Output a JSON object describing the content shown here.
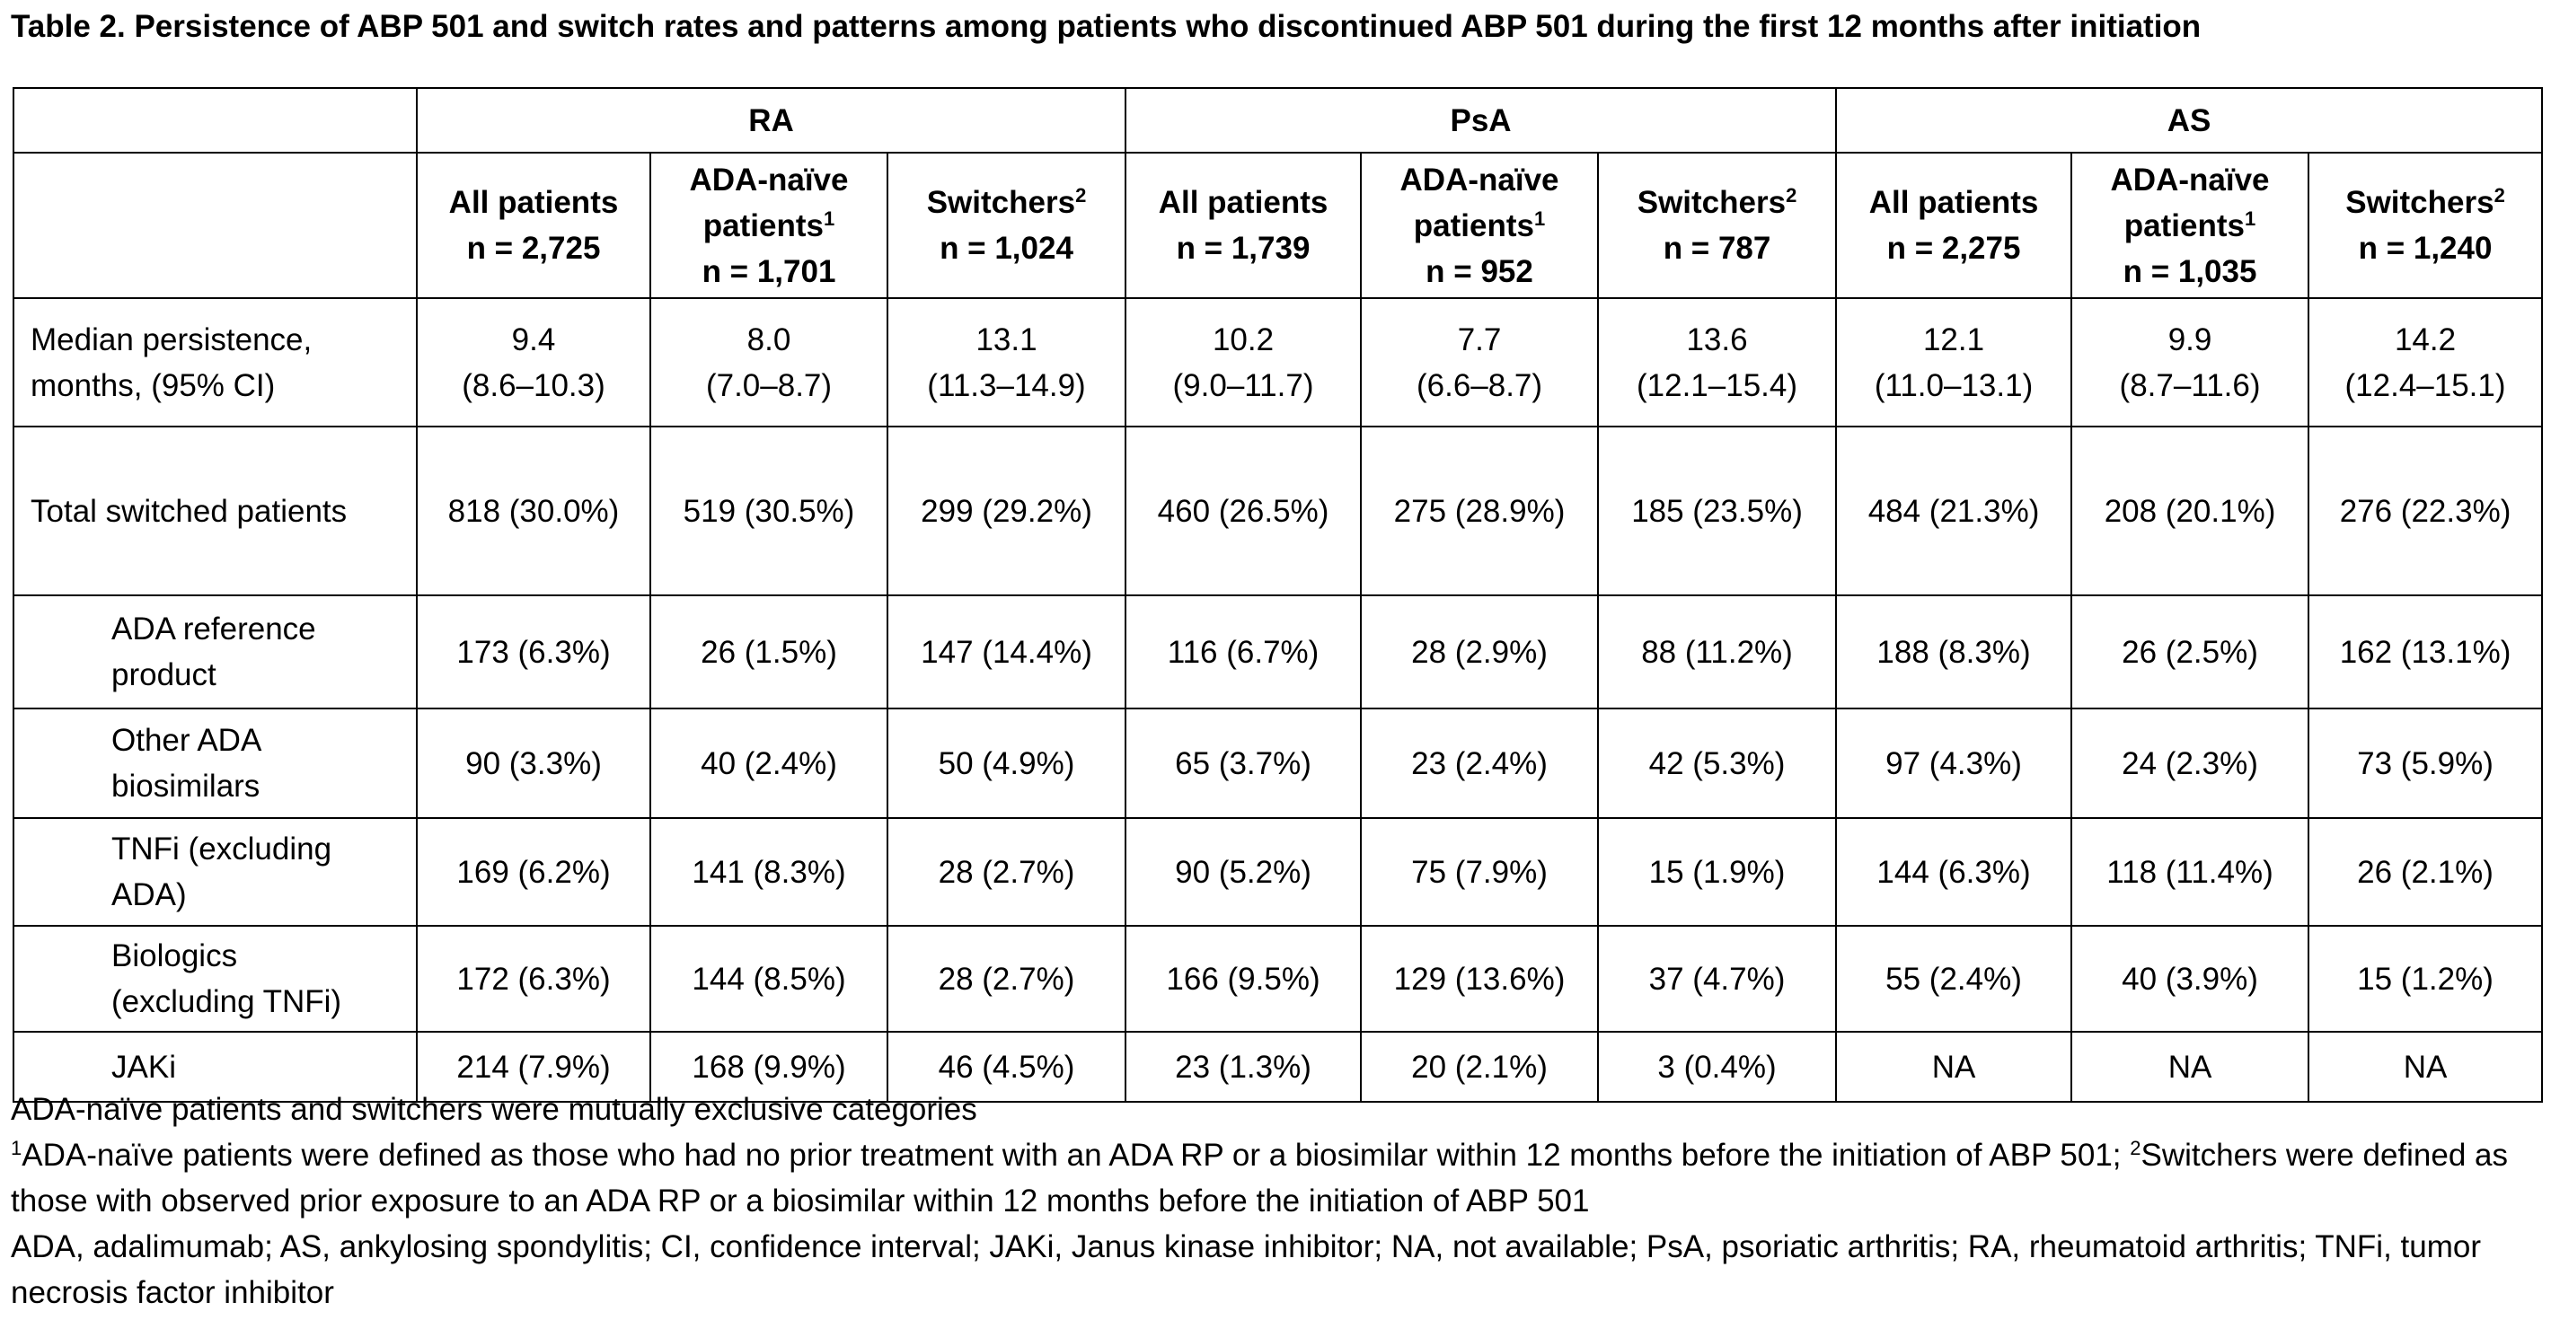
{
  "title": "Table 2. Persistence of ABP 501 and switch rates and patterns among patients who discontinued ABP 501 during the first 12 months after initiation",
  "groups": [
    "RA",
    "PsA",
    "AS"
  ],
  "subheaders": [
    {
      "l1": "All patients",
      "sup": "",
      "l2": "n = 2,725"
    },
    {
      "l1": "ADA-naïve",
      "l1b": "patients",
      "sup": "1",
      "l2": "n = 1,701"
    },
    {
      "l1": "Switchers",
      "sup": "2",
      "l2": "n = 1,024"
    },
    {
      "l1": "All patients",
      "sup": "",
      "l2": "n = 1,739"
    },
    {
      "l1": "ADA-naïve",
      "l1b": "patients",
      "sup": "1",
      "l2": "n = 952"
    },
    {
      "l1": "Switchers",
      "sup": "2",
      "l2": "n = 787"
    },
    {
      "l1": "All patients",
      "sup": "",
      "l2": "n = 2,275"
    },
    {
      "l1": "ADA-naïve",
      "l1b": "patients",
      "sup": "1",
      "l2": "n = 1,035"
    },
    {
      "l1": "Switchers",
      "sup": "2",
      "l2": "n = 1,240"
    }
  ],
  "rows": [
    {
      "label": [
        "Median persistence,",
        "months, (95% CI)"
      ],
      "sub": false,
      "cells": [
        [
          "9.4",
          "(8.6–10.3)"
        ],
        [
          "8.0",
          "(7.0–8.7)"
        ],
        [
          "13.1",
          "(11.3–14.9)"
        ],
        [
          "10.2",
          "(9.0–11.7)"
        ],
        [
          "7.7",
          "(6.6–8.7)"
        ],
        [
          "13.6",
          "(12.1–15.4)"
        ],
        [
          "12.1",
          "(11.0–13.1)"
        ],
        [
          "9.9",
          "(8.7–11.6)"
        ],
        [
          "14.2",
          "(12.4–15.1)"
        ]
      ]
    },
    {
      "label": [
        "Total switched patients"
      ],
      "sub": false,
      "cells": [
        [
          "818 (30.0%)"
        ],
        [
          "519 (30.5%)"
        ],
        [
          "299 (29.2%)"
        ],
        [
          "460 (26.5%)"
        ],
        [
          "275 (28.9%)"
        ],
        [
          "185 (23.5%)"
        ],
        [
          "484 (21.3%)"
        ],
        [
          "208 (20.1%)"
        ],
        [
          "276 (22.3%)"
        ]
      ]
    },
    {
      "label": [
        "ADA reference",
        "product"
      ],
      "sub": true,
      "cells": [
        [
          "173 (6.3%)"
        ],
        [
          "26 (1.5%)"
        ],
        [
          "147 (14.4%)"
        ],
        [
          "116 (6.7%)"
        ],
        [
          "28 (2.9%)"
        ],
        [
          "88 (11.2%)"
        ],
        [
          "188 (8.3%)"
        ],
        [
          "26 (2.5%)"
        ],
        [
          "162 (13.1%)"
        ]
      ]
    },
    {
      "label": [
        "Other ADA",
        "biosimilars"
      ],
      "sub": true,
      "cells": [
        [
          "90 (3.3%)"
        ],
        [
          "40 (2.4%)"
        ],
        [
          "50 (4.9%)"
        ],
        [
          "65 (3.7%)"
        ],
        [
          "23 (2.4%)"
        ],
        [
          "42 (5.3%)"
        ],
        [
          "97 (4.3%)"
        ],
        [
          "24 (2.3%)"
        ],
        [
          "73 (5.9%)"
        ]
      ]
    },
    {
      "label": [
        "TNFi (excluding",
        "ADA)"
      ],
      "sub": true,
      "cells": [
        [
          "169 (6.2%)"
        ],
        [
          "141 (8.3%)"
        ],
        [
          "28 (2.7%)"
        ],
        [
          "90 (5.2%)"
        ],
        [
          "75 (7.9%)"
        ],
        [
          "15 (1.9%)"
        ],
        [
          "144 (6.3%)"
        ],
        [
          "118 (11.4%)"
        ],
        [
          "26 (2.1%)"
        ]
      ]
    },
    {
      "label": [
        "Biologics",
        "(excluding TNFi)"
      ],
      "sub": true,
      "cells": [
        [
          "172 (6.3%)"
        ],
        [
          "144 (8.5%)"
        ],
        [
          "28 (2.7%)"
        ],
        [
          "166 (9.5%)"
        ],
        [
          "129 (13.6%)"
        ],
        [
          "37 (4.7%)"
        ],
        [
          "55 (2.4%)"
        ],
        [
          "40 (3.9%)"
        ],
        [
          "15 (1.2%)"
        ]
      ]
    },
    {
      "label": [
        "JAKi"
      ],
      "sub": true,
      "cells": [
        [
          "214 (7.9%)"
        ],
        [
          "168 (9.9%)"
        ],
        [
          "46 (4.5%)"
        ],
        [
          "23 (1.3%)"
        ],
        [
          "20 (2.1%)"
        ],
        [
          "3 (0.4%)"
        ],
        [
          "NA"
        ],
        [
          "NA"
        ],
        [
          "NA"
        ]
      ]
    }
  ],
  "footnotes": {
    "line1": "ADA-naïve patients and switchers were mutually exclusive categories",
    "fn1_mark": "1",
    "fn1_text": "ADA-naïve patients were defined as those who had no prior treatment with an ADA RP or a biosimilar within 12 months before the initiation of ABP 501; ",
    "fn2_mark": "2",
    "fn2_text": "Switchers were defined as those with observed prior exposure to an ADA RP or a biosimilar within 12 months before the initiation of ABP 501",
    "abbrev": "ADA, adalimumab; AS, ankylosing spondylitis; CI, confidence interval; JAKi, Janus kinase inhibitor; NA, not available; PsA, psoriatic arthritis; RA, rheumatoid arthritis; TNFi, tumor necrosis factor inhibitor"
  }
}
